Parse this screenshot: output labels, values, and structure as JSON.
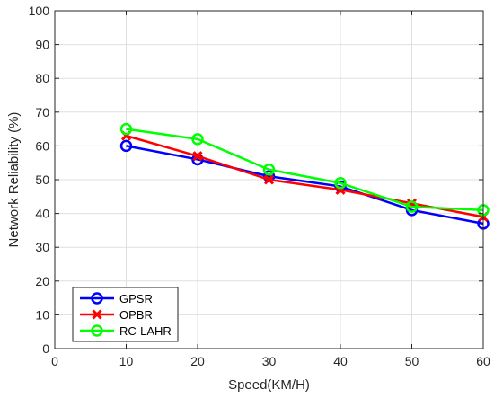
{
  "chart_data": {
    "type": "line",
    "xlabel": "Speed(KM/H)",
    "ylabel": "Network Reliability (%)",
    "xlim": [
      0,
      60
    ],
    "ylim": [
      0,
      100
    ],
    "xticks": [
      0,
      10,
      20,
      30,
      40,
      50,
      60
    ],
    "yticks": [
      0,
      10,
      20,
      30,
      40,
      50,
      60,
      70,
      80,
      90,
      100
    ],
    "grid": true,
    "legend_position": "bottom-left",
    "x": [
      10,
      20,
      30,
      40,
      50,
      60
    ],
    "series": [
      {
        "name": "GPSR",
        "values": [
          60,
          56,
          51,
          48,
          41,
          37
        ],
        "color": "#0000ff",
        "marker": "circle"
      },
      {
        "name": "OPBR",
        "values": [
          63,
          57,
          50,
          47,
          43,
          39
        ],
        "color": "#ff0000",
        "marker": "x"
      },
      {
        "name": "RC-LAHR",
        "values": [
          65,
          62,
          53,
          49,
          42,
          41
        ],
        "color": "#00ff00",
        "marker": "circle"
      }
    ]
  }
}
